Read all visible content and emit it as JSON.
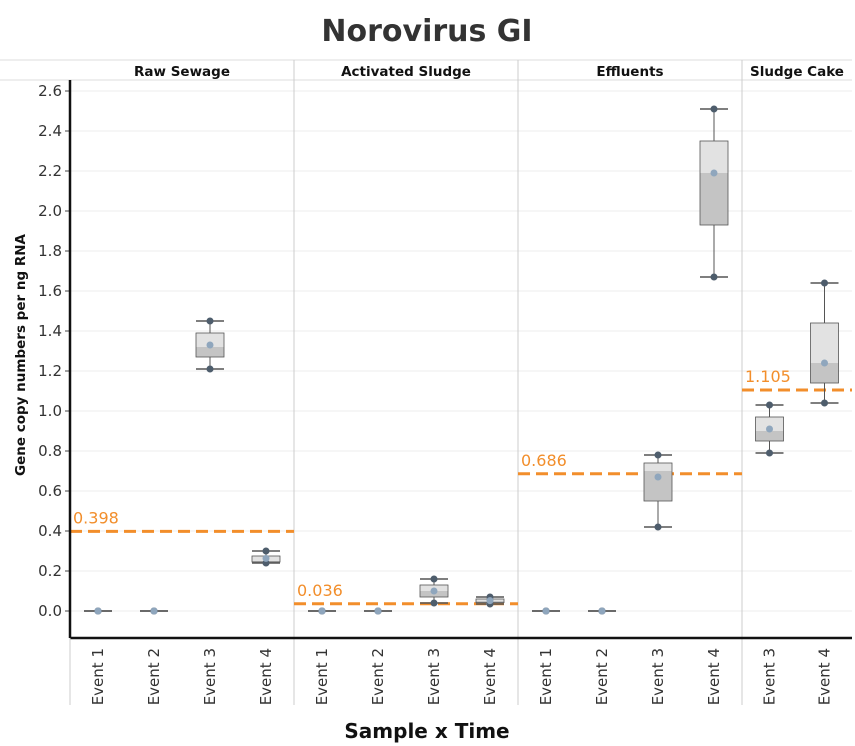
{
  "chart_data": {
    "type": "box",
    "title": "Norovirus GI",
    "xlabel": "Sample x Time",
    "ylabel": "Gene copy numbers per ng RNA",
    "ylim": [
      -0.14,
      2.68
    ],
    "yticks": [
      "0.0",
      "0.2",
      "0.4",
      "0.6",
      "0.8",
      "1.0",
      "1.2",
      "1.4",
      "1.6",
      "1.8",
      "2.0",
      "2.2",
      "2.4",
      "2.6"
    ],
    "grid": true,
    "colors": {
      "reference_line": "#f28e2b",
      "point": "#4e5d6c",
      "box_upper": "#e2e2e2",
      "box_lower": "#c4c4c4",
      "whisker": "#555555",
      "gridline": "#ececec",
      "divider": "#cccccc"
    },
    "panels": [
      {
        "name": "Raw Sewage",
        "reference_line": {
          "value": 0.398,
          "label": "0.398"
        },
        "groups": [
          {
            "label": "Event 1",
            "points": [
              0,
              0,
              0
            ],
            "min": 0,
            "q1": 0,
            "median": 0,
            "q3": 0,
            "max": 0,
            "mean": 0
          },
          {
            "label": "Event 2",
            "points": [
              0,
              0,
              0
            ],
            "min": 0,
            "q1": 0,
            "median": 0,
            "q3": 0,
            "max": 0,
            "mean": 0
          },
          {
            "label": "Event 3",
            "points": [
              1.21,
              1.32,
              1.45
            ],
            "min": 1.21,
            "q1": 1.27,
            "median": 1.32,
            "q3": 1.39,
            "max": 1.45,
            "mean": 1.33
          },
          {
            "label": "Event 4",
            "points": [
              0.24,
              0.25,
              0.3
            ],
            "min": 0.24,
            "q1": 0.245,
            "median": 0.25,
            "q3": 0.275,
            "max": 0.3,
            "mean": 0.263
          }
        ]
      },
      {
        "name": "Activated Sludge",
        "reference_line": {
          "value": 0.036,
          "label": "0.036"
        },
        "groups": [
          {
            "label": "Event 1",
            "points": [
              0,
              0,
              0
            ],
            "min": 0,
            "q1": 0,
            "median": 0,
            "q3": 0,
            "max": 0,
            "mean": 0
          },
          {
            "label": "Event 2",
            "points": [
              0,
              0,
              0
            ],
            "min": 0,
            "q1": 0,
            "median": 0,
            "q3": 0,
            "max": 0,
            "mean": 0
          },
          {
            "label": "Event 3",
            "points": [
              0.04,
              0.1,
              0.16
            ],
            "min": 0.04,
            "q1": 0.07,
            "median": 0.1,
            "q3": 0.13,
            "max": 0.16,
            "mean": 0.1
          },
          {
            "label": "Event 4",
            "points": [
              0.035,
              0.05,
              0.07
            ],
            "min": 0.035,
            "q1": 0.042,
            "median": 0.05,
            "q3": 0.06,
            "max": 0.07,
            "mean": 0.052
          }
        ]
      },
      {
        "name": "Effluents",
        "reference_line": {
          "value": 0.686,
          "label": "0.686"
        },
        "groups": [
          {
            "label": "Event 1",
            "points": [
              0,
              0,
              0
            ],
            "min": 0,
            "q1": 0,
            "median": 0,
            "q3": 0,
            "max": 0,
            "mean": 0
          },
          {
            "label": "Event 2",
            "points": [
              0,
              0,
              0
            ],
            "min": 0,
            "q1": 0,
            "median": 0,
            "q3": 0,
            "max": 0,
            "mean": 0
          },
          {
            "label": "Event 3",
            "points": [
              0.42,
              0.7,
              0.78
            ],
            "min": 0.42,
            "q1": 0.55,
            "median": 0.7,
            "q3": 0.74,
            "max": 0.78,
            "mean": 0.67
          },
          {
            "label": "Event 4",
            "points": [
              1.67,
              2.19,
              2.51
            ],
            "min": 1.67,
            "q1": 1.93,
            "median": 2.19,
            "q3": 2.35,
            "max": 2.51,
            "mean": 2.19
          }
        ]
      },
      {
        "name": "Sludge Cake",
        "reference_line": {
          "value": 1.105,
          "label": "1.105"
        },
        "groups": [
          {
            "label": "Event 3",
            "points": [
              0.79,
              0.9,
              1.03
            ],
            "min": 0.79,
            "q1": 0.85,
            "median": 0.9,
            "q3": 0.97,
            "max": 1.03,
            "mean": 0.91
          },
          {
            "label": "Event 4",
            "points": [
              1.04,
              1.24,
              1.64
            ],
            "min": 1.04,
            "q1": 1.14,
            "median": 1.24,
            "q3": 1.44,
            "max": 1.64,
            "mean": 1.24
          }
        ]
      }
    ]
  }
}
